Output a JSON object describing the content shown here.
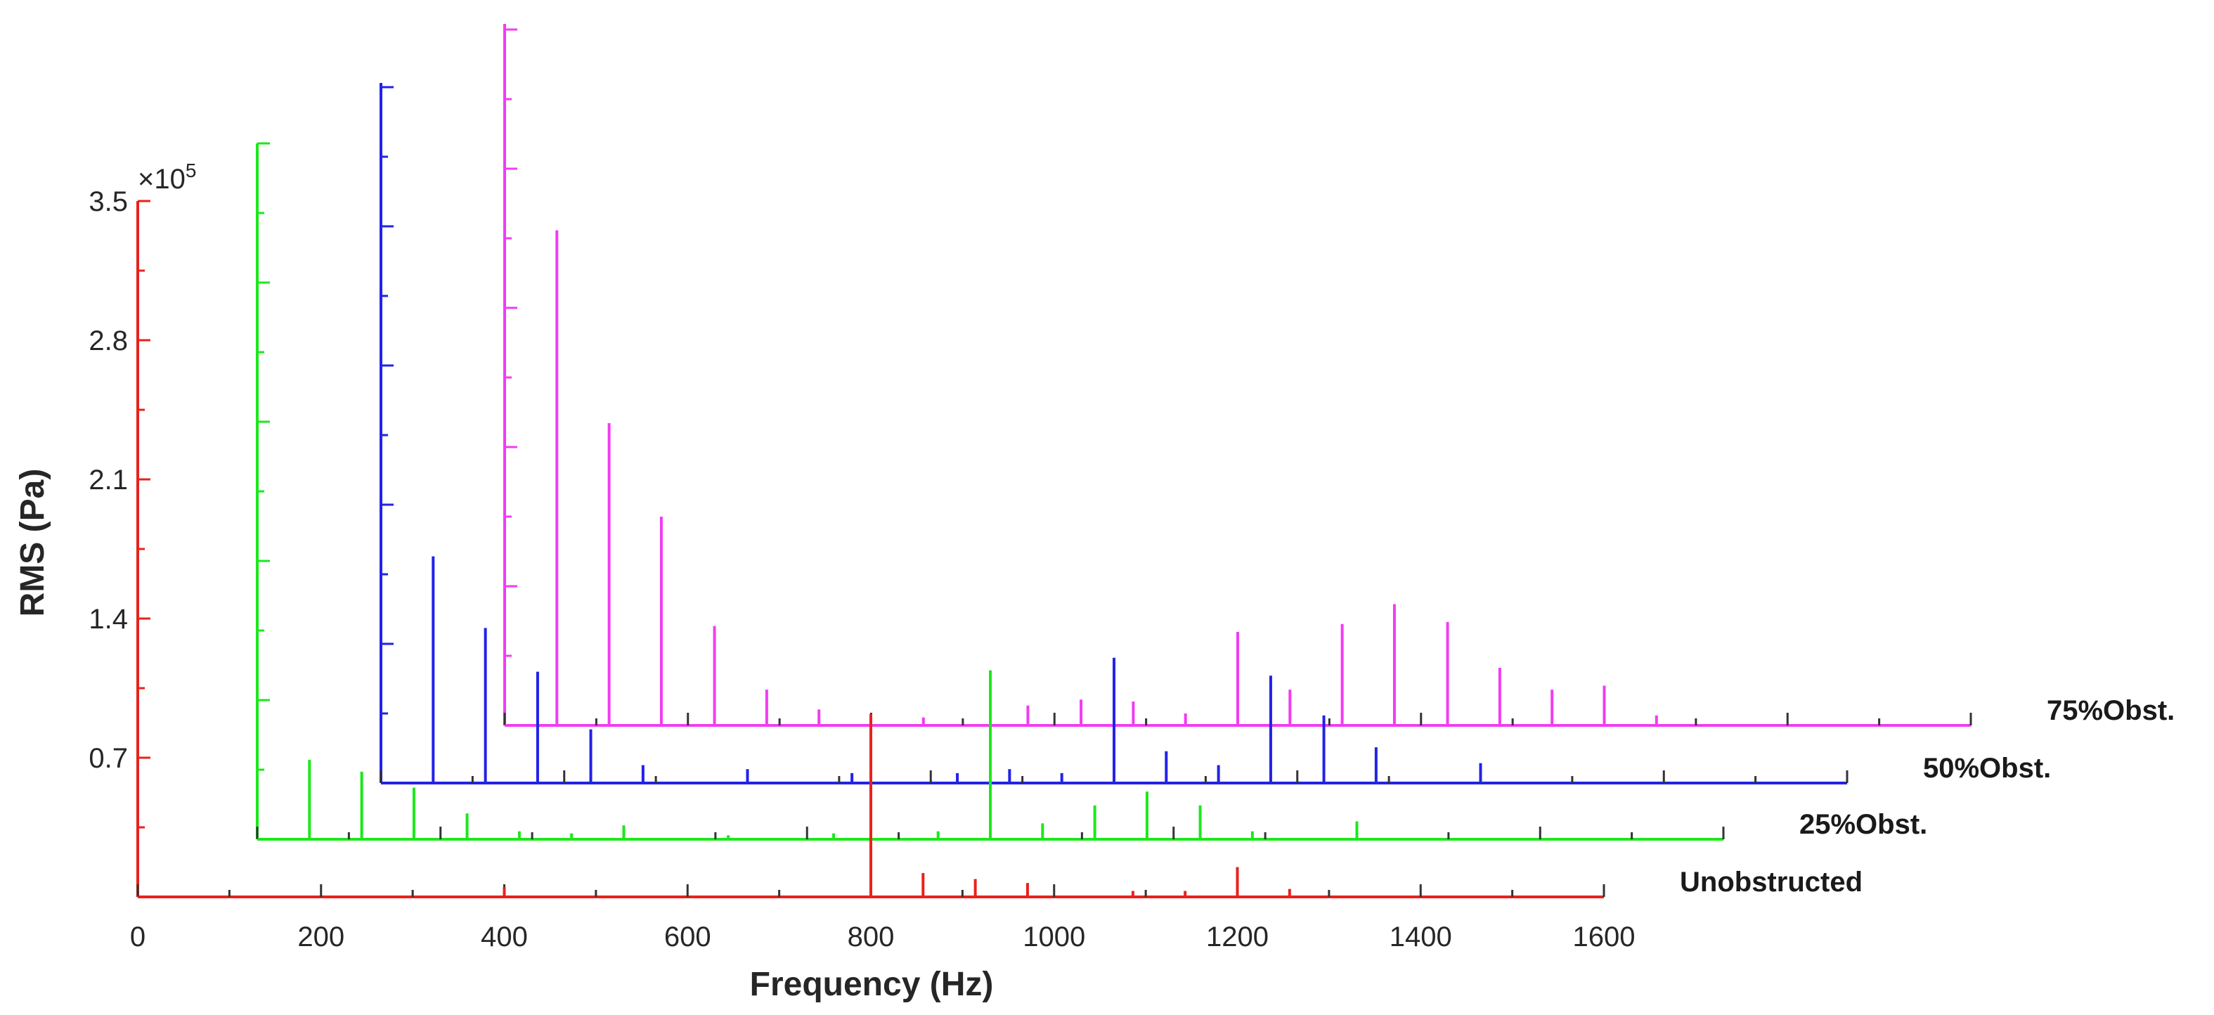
{
  "chart_data": {
    "type": "line",
    "subtype": "waterfall-spectrum",
    "xlabel": "Frequency (Hz)",
    "ylabel": "RMS (Pa)",
    "y_multiplier_label": "×10^5",
    "y_multiplier_base": "×10",
    "y_multiplier_exp": "5",
    "xlim": [
      0,
      1600
    ],
    "ylim": [
      0,
      3.5
    ],
    "x_ticks": [
      "0",
      "200",
      "400",
      "600",
      "800",
      "1000",
      "1200",
      "1400",
      "1600"
    ],
    "y_ticks": [
      "0.7",
      "1.4",
      "2.1",
      "2.8",
      "3.5"
    ],
    "grid": false,
    "series": [
      {
        "name": "Unobstructed",
        "color": "#e8221c",
        "peaks": [
          {
            "x": 400,
            "y": 0.05
          },
          {
            "x": 800,
            "y": 0.92
          },
          {
            "x": 857,
            "y": 0.12
          },
          {
            "x": 914,
            "y": 0.09
          },
          {
            "x": 971,
            "y": 0.07
          },
          {
            "x": 1086,
            "y": 0.03
          },
          {
            "x": 1143,
            "y": 0.03
          },
          {
            "x": 1200,
            "y": 0.15
          },
          {
            "x": 1257,
            "y": 0.04
          }
        ]
      },
      {
        "name": "25%Obst.",
        "color": "#1ce81c",
        "peaks": [
          {
            "x": 57,
            "y": 0.4
          },
          {
            "x": 114,
            "y": 0.34
          },
          {
            "x": 171,
            "y": 0.26
          },
          {
            "x": 229,
            "y": 0.13
          },
          {
            "x": 286,
            "y": 0.04
          },
          {
            "x": 343,
            "y": 0.03
          },
          {
            "x": 400,
            "y": 0.07
          },
          {
            "x": 514,
            "y": 0.02
          },
          {
            "x": 629,
            "y": 0.03
          },
          {
            "x": 743,
            "y": 0.04
          },
          {
            "x": 800,
            "y": 0.85
          },
          {
            "x": 857,
            "y": 0.08
          },
          {
            "x": 914,
            "y": 0.17
          },
          {
            "x": 971,
            "y": 0.24
          },
          {
            "x": 1029,
            "y": 0.17
          },
          {
            "x": 1086,
            "y": 0.04
          },
          {
            "x": 1200,
            "y": 0.09
          }
        ]
      },
      {
        "name": "50%Obst.",
        "color": "#2222e8",
        "peaks": [
          {
            "x": 57,
            "y": 1.14
          },
          {
            "x": 114,
            "y": 0.78
          },
          {
            "x": 171,
            "y": 0.56
          },
          {
            "x": 229,
            "y": 0.27
          },
          {
            "x": 286,
            "y": 0.09
          },
          {
            "x": 400,
            "y": 0.07
          },
          {
            "x": 514,
            "y": 0.05
          },
          {
            "x": 629,
            "y": 0.05
          },
          {
            "x": 686,
            "y": 0.07
          },
          {
            "x": 743,
            "y": 0.05
          },
          {
            "x": 800,
            "y": 0.63
          },
          {
            "x": 857,
            "y": 0.16
          },
          {
            "x": 914,
            "y": 0.09
          },
          {
            "x": 971,
            "y": 0.54
          },
          {
            "x": 1029,
            "y": 0.34
          },
          {
            "x": 1086,
            "y": 0.18
          },
          {
            "x": 1200,
            "y": 0.1
          }
        ]
      },
      {
        "name": "75%Obst.",
        "color": "#f23cf2",
        "peaks": [
          {
            "x": 57,
            "y": 2.49
          },
          {
            "x": 114,
            "y": 1.52
          },
          {
            "x": 171,
            "y": 1.05
          },
          {
            "x": 229,
            "y": 0.5
          },
          {
            "x": 286,
            "y": 0.18
          },
          {
            "x": 343,
            "y": 0.08
          },
          {
            "x": 457,
            "y": 0.04
          },
          {
            "x": 571,
            "y": 0.1
          },
          {
            "x": 629,
            "y": 0.13
          },
          {
            "x": 686,
            "y": 0.12
          },
          {
            "x": 743,
            "y": 0.06
          },
          {
            "x": 800,
            "y": 0.47
          },
          {
            "x": 857,
            "y": 0.18
          },
          {
            "x": 914,
            "y": 0.51
          },
          {
            "x": 971,
            "y": 0.61
          },
          {
            "x": 1029,
            "y": 0.52
          },
          {
            "x": 1086,
            "y": 0.29
          },
          {
            "x": 1143,
            "y": 0.18
          },
          {
            "x": 1200,
            "y": 0.2
          },
          {
            "x": 1257,
            "y": 0.05
          }
        ]
      }
    ]
  }
}
